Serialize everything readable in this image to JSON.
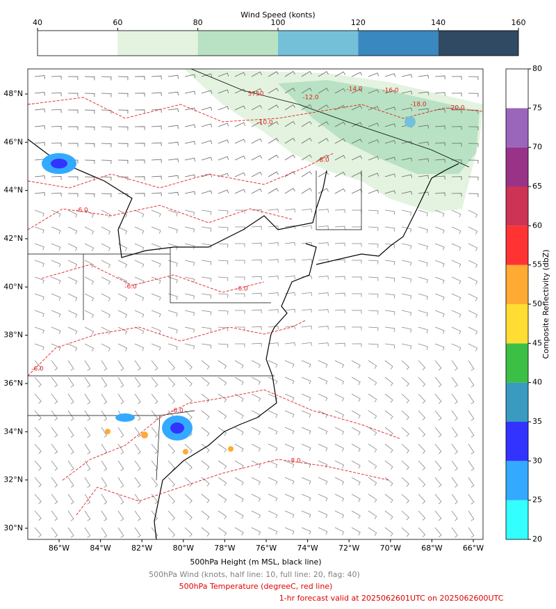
{
  "wind_colorbar": {
    "title": "Wind Speed (konts)",
    "ticks": [
      40,
      60,
      80,
      100,
      120,
      140,
      160
    ],
    "range": [
      40,
      160
    ],
    "colors": [
      "#ffffff",
      "#e3f3df",
      "#b8e2c3",
      "#74c0d8",
      "#3a88c0",
      "#2f4a62"
    ]
  },
  "reflectivity_colorbar": {
    "title": "Composite Reflectivity (dbZ)",
    "ticks": [
      20,
      25,
      30,
      35,
      40,
      45,
      50,
      55,
      60,
      65,
      70,
      75,
      80
    ],
    "range": [
      20,
      80
    ],
    "colors": [
      "#33ffff",
      "#33aaff",
      "#3333ff",
      "#3a9ac0",
      "#3cbf45",
      "#ffdd33",
      "#ffaa33",
      "#ff3333",
      "#cc3355",
      "#993388",
      "#9966bb",
      "#ffffff"
    ]
  },
  "map": {
    "lat_labels": [
      "48°N",
      "46°N",
      "44°N",
      "42°N",
      "40°N",
      "38°N",
      "36°N",
      "34°N",
      "32°N",
      "30°N"
    ],
    "lon_labels": [
      "86°W",
      "84°W",
      "82°W",
      "80°W",
      "78°W",
      "76°W",
      "74°W",
      "72°W",
      "70°W",
      "68°W",
      "66°W"
    ],
    "contour_labels": [
      "5750",
      "-12.0",
      "-14.0",
      "-16.0",
      "-18.0",
      "-20.0",
      "-10.0",
      "-8.0",
      "-6.0",
      "-6.0",
      "-6.0",
      "-6.0",
      "-6.0",
      "-8.0"
    ]
  },
  "captions": [
    "500hPa Height (m MSL, black line)",
    "500hPa Wind (knots, half line: 10, full line: 20, flag: 40)",
    "500hPa Temperature (degreeC, red line)",
    "1-hr forecast valid at 2025062601UTC on 2025062600UTC"
  ]
}
